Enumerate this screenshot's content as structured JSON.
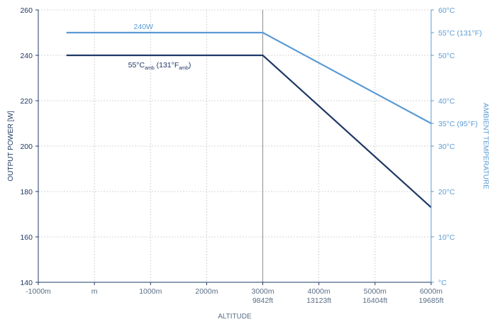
{
  "chart_data": {
    "type": "line",
    "xlabel": "ALTITUDE",
    "ylabel": "OUTPUT POWER [W]",
    "y2label": "AMBIENT TEMPERATURE",
    "xlim": [
      -1000,
      6000
    ],
    "ylim": [
      140,
      260
    ],
    "y2lim": [
      0,
      60
    ],
    "grid": true,
    "x_ticks": [
      {
        "value": -1000,
        "label": "-1000m",
        "sub": ""
      },
      {
        "value": 0,
        "label": "m",
        "sub": ""
      },
      {
        "value": 1000,
        "label": "1000m",
        "sub": ""
      },
      {
        "value": 2000,
        "label": "2000m",
        "sub": ""
      },
      {
        "value": 3000,
        "label": "3000m",
        "sub": "9842ft"
      },
      {
        "value": 4000,
        "label": "4000m",
        "sub": "13123ft"
      },
      {
        "value": 5000,
        "label": "5000m",
        "sub": "16404ft"
      },
      {
        "value": 6000,
        "label": "6000m",
        "sub": "19685ft"
      }
    ],
    "y_ticks": [
      140,
      160,
      180,
      200,
      220,
      240,
      260
    ],
    "y2_ticks": [
      {
        "value": 0,
        "label": "°C"
      },
      {
        "value": 10,
        "label": "10°C"
      },
      {
        "value": 20,
        "label": "20°C"
      },
      {
        "value": 30,
        "label": "30°C"
      },
      {
        "value": 35,
        "label": "35°C (95°F)"
      },
      {
        "value": 40,
        "label": "40°C"
      },
      {
        "value": 50,
        "label": "50°C"
      },
      {
        "value": 55,
        "label": "55°C (131°F)"
      },
      {
        "value": 60,
        "label": "60°C"
      }
    ],
    "series": [
      {
        "name": "240W",
        "axis": "right",
        "color": "#5b9bd5",
        "x": [
          -500,
          3000,
          6000
        ],
        "y": [
          55,
          55,
          35
        ]
      },
      {
        "name": "55°Camb (131°Famb)",
        "axis": "left",
        "color": "#1f3864",
        "x": [
          -500,
          3000,
          6000
        ],
        "y": [
          240,
          240,
          173
        ]
      }
    ],
    "annotations": {
      "label_240w": "240W",
      "label_55c_base": "55°C",
      "label_55c_sub1": "amb",
      "label_55c_mid": " (131°F",
      "label_55c_sub2": "amb",
      "label_55c_end": ")"
    }
  },
  "colors": {
    "left_axis": "#1f3864",
    "right_axis": "#5b9bd5",
    "x_axis_text": "#5a6e86",
    "grid": "#c8c8c8",
    "divider": "#8c8c8c"
  }
}
